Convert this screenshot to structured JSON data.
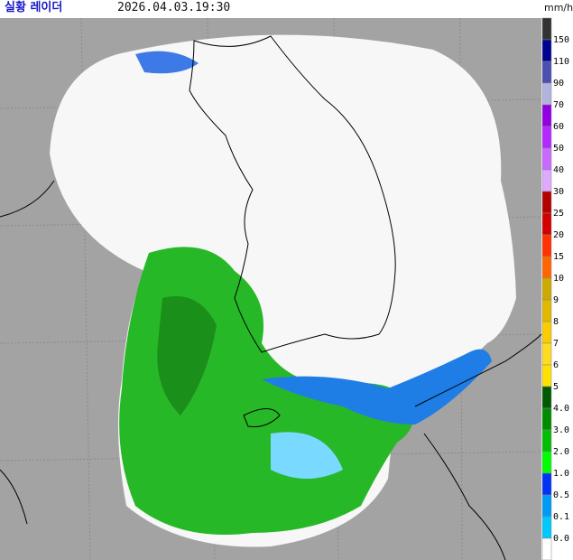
{
  "header": {
    "title": "실황 레이더",
    "timestamp": "2026.04.03.19:30",
    "unit": "mm/h"
  },
  "legend": {
    "labels": [
      "150",
      "110",
      "90",
      "70",
      "60",
      "50",
      "40",
      "30",
      "25",
      "20",
      "15",
      "10",
      "9",
      "8",
      "7",
      "6",
      "5",
      "4.0",
      "3.0",
      "2.0",
      "1.0",
      "0.5",
      "0.1",
      "0.0"
    ],
    "colors": [
      "#333333",
      "#000390",
      "#4c4eb1",
      "#b3b4de",
      "#9300e4",
      "#b329ff",
      "#c969ff",
      "#dfa9ff",
      "#b40000",
      "#d20000",
      "#ff3200",
      "#ff6600",
      "#ccaa00",
      "#e0b900",
      "#f9cd00",
      "#ffdc1f",
      "#ffe100",
      "#005a00",
      "#008c00",
      "#00be00",
      "#00ff00",
      "#0033f5",
      "#009bf5",
      "#00c8ff",
      "#ffffff"
    ]
  }
}
